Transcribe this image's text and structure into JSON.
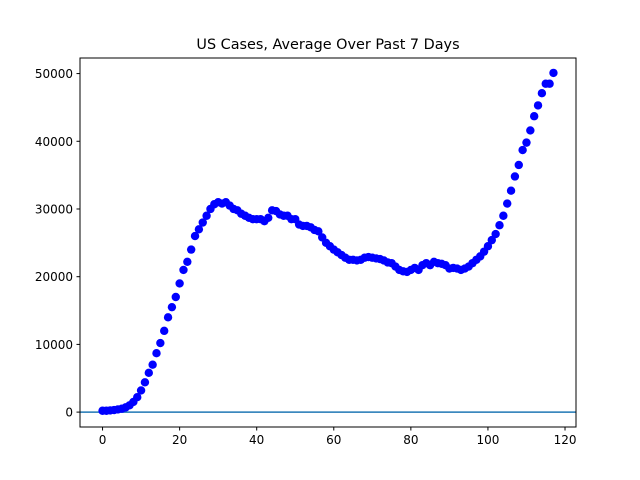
{
  "chart_data": {
    "type": "scatter",
    "title": "US Cases, Average Over Past 7 Days",
    "xlabel": "",
    "ylabel": "",
    "xlim": [
      -5.85,
      122.85
    ],
    "ylim": [
      -2200,
      52300
    ],
    "xticks": [
      0,
      20,
      40,
      60,
      80,
      100,
      120
    ],
    "yticks": [
      0,
      10000,
      20000,
      30000,
      40000,
      50000
    ],
    "xtick_labels": [
      "0",
      "20",
      "40",
      "60",
      "80",
      "100",
      "120"
    ],
    "ytick_labels": [
      "0",
      "10000",
      "20000",
      "30000",
      "40000",
      "50000"
    ],
    "grid": false,
    "legend": "none",
    "marker_color": "#0000ff",
    "hline": {
      "y": 0,
      "color": "#1f77b4"
    },
    "series": [
      {
        "x": [
          0,
          1,
          2,
          3,
          4,
          5,
          6,
          7,
          8,
          9,
          10,
          11,
          12,
          13,
          14,
          15,
          16,
          17,
          18,
          19,
          20,
          21,
          22,
          23,
          24,
          25,
          26,
          27,
          28,
          29,
          30,
          31,
          32,
          33,
          34,
          35,
          36,
          37,
          38,
          39,
          40,
          41,
          42,
          43,
          44,
          45,
          46,
          47,
          48,
          49,
          50,
          51,
          52,
          53,
          54,
          55,
          56,
          57,
          58,
          59,
          60,
          61,
          62,
          63,
          64,
          65,
          66,
          67,
          68,
          69,
          70,
          71,
          72,
          73,
          74,
          75,
          76,
          77,
          78,
          79,
          80,
          81,
          82,
          83,
          84,
          85,
          86,
          87,
          88,
          89,
          90,
          91,
          92,
          93,
          94,
          95,
          96,
          97,
          98,
          99,
          100,
          101,
          102,
          103,
          104,
          105,
          106,
          107,
          108,
          109,
          110,
          111,
          112,
          113,
          114,
          115,
          116,
          117
        ],
        "y": [
          200,
          200,
          250,
          300,
          400,
          500,
          700,
          1000,
          1500,
          2200,
          3200,
          4400,
          5800,
          7000,
          8700,
          10200,
          12000,
          14000,
          15500,
          17000,
          19000,
          21000,
          22200,
          24000,
          26000,
          27000,
          28000,
          29000,
          30000,
          30700,
          31000,
          30800,
          31000,
          30500,
          30000,
          29800,
          29300,
          29000,
          28700,
          28500,
          28500,
          28500,
          28200,
          28700,
          29800,
          29700,
          29200,
          29000,
          29000,
          28500,
          28500,
          27700,
          27500,
          27500,
          27300,
          26900,
          26700,
          25800,
          25000,
          24500,
          24000,
          23600,
          23200,
          22800,
          22500,
          22500,
          22400,
          22500,
          22800,
          22900,
          22800,
          22700,
          22600,
          22400,
          22100,
          22000,
          21500,
          21000,
          20800,
          20700,
          21000,
          21300,
          21000,
          21700,
          22000,
          21700,
          22200,
          22000,
          21900,
          21700,
          21200,
          21300,
          21200,
          21000,
          21200,
          21500,
          22000,
          22500,
          23000,
          23700,
          24500,
          25400,
          26300,
          27600,
          29000,
          30800,
          32700,
          34800,
          36500,
          38700,
          39800,
          41600,
          43700,
          45300,
          47100,
          48500,
          48500,
          50100
        ]
      }
    ]
  }
}
